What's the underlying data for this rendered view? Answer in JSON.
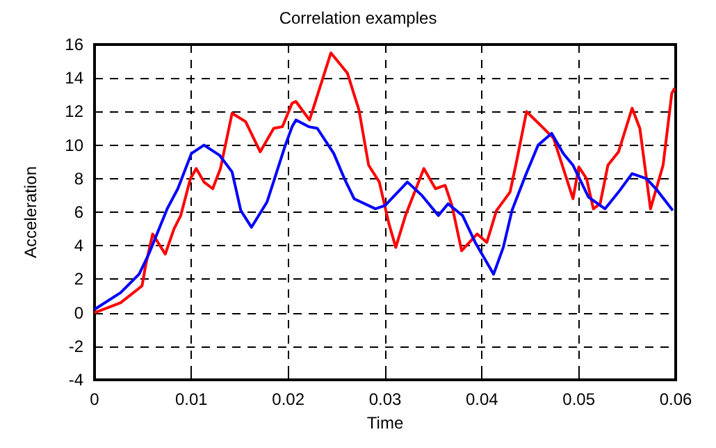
{
  "chart_data": {
    "type": "line",
    "title": "Correlation examples",
    "xlabel": "Time",
    "ylabel": "Acceleration",
    "xlim": [
      0,
      0.06
    ],
    "xticks": [
      0,
      0.01,
      0.02,
      0.03,
      0.04,
      0.05,
      0.06
    ],
    "ylim": [
      -4,
      16
    ],
    "yticks": [
      -4,
      -2,
      0,
      2,
      4,
      6,
      8,
      10,
      12,
      14,
      16
    ],
    "grid": true,
    "marker": "none",
    "line_style": "solid",
    "series": [
      {
        "color": "#ff0000",
        "x": [
          0,
          0.0027,
          0.0049,
          0.0053,
          0.006,
          0.0073,
          0.0082,
          0.0089,
          0.0099,
          0.0105,
          0.0113,
          0.0122,
          0.013,
          0.0142,
          0.0156,
          0.0171,
          0.0185,
          0.0194,
          0.0204,
          0.0208,
          0.0222,
          0.0244,
          0.0261,
          0.0273,
          0.0283,
          0.0294,
          0.0304,
          0.0311,
          0.0321,
          0.034,
          0.0352,
          0.0362,
          0.0369,
          0.0379,
          0.0395,
          0.0405,
          0.0415,
          0.0429,
          0.0436,
          0.0446,
          0.0462,
          0.0474,
          0.0484,
          0.0494,
          0.05,
          0.0508,
          0.0515,
          0.0522,
          0.053,
          0.0541,
          0.0555,
          0.0563,
          0.0574,
          0.0587,
          0.0596,
          0.0599
        ],
        "values": [
          0,
          0.6,
          1.6,
          2.9,
          4.7,
          3.5,
          5.0,
          5.8,
          8.0,
          8.6,
          7.8,
          7.4,
          8.6,
          11.9,
          11.4,
          9.6,
          11.0,
          11.1,
          12.5,
          12.6,
          11.5,
          15.5,
          14.3,
          12.1,
          8.8,
          7.8,
          5.3,
          3.9,
          5.8,
          8.6,
          7.4,
          7.6,
          6.4,
          3.7,
          4.7,
          4.2,
          6.1,
          7.2,
          9.1,
          12.0,
          11.1,
          10.4,
          8.6,
          6.8,
          8.7,
          8.0,
          6.2,
          6.5,
          8.8,
          9.6,
          12.2,
          11.0,
          6.2,
          8.8,
          13.1,
          13.4
        ]
      },
      {
        "color": "#0000ff",
        "x": [
          0,
          0.0027,
          0.0046,
          0.0056,
          0.0075,
          0.0086,
          0.01,
          0.0113,
          0.0129,
          0.0142,
          0.0151,
          0.0162,
          0.0178,
          0.0187,
          0.0197,
          0.0204,
          0.0208,
          0.0221,
          0.023,
          0.0247,
          0.0258,
          0.0268,
          0.029,
          0.03,
          0.0323,
          0.0338,
          0.0355,
          0.0365,
          0.038,
          0.0393,
          0.0405,
          0.0412,
          0.0422,
          0.0431,
          0.0445,
          0.0458,
          0.0472,
          0.0484,
          0.0494,
          0.051,
          0.0527,
          0.0541,
          0.0555,
          0.057,
          0.0581,
          0.0597
        ],
        "values": [
          0.2,
          1.2,
          2.3,
          3.5,
          6.2,
          7.4,
          9.5,
          10.0,
          9.4,
          8.4,
          6.1,
          5.1,
          6.6,
          8.2,
          10.0,
          11.1,
          11.5,
          11.1,
          11.0,
          9.5,
          8.0,
          6.8,
          6.2,
          6.4,
          7.8,
          7.0,
          5.8,
          6.5,
          5.8,
          4.2,
          3.0,
          2.3,
          3.9,
          6.1,
          8.2,
          10.0,
          10.7,
          9.5,
          8.8,
          6.9,
          6.2,
          7.2,
          8.3,
          8.0,
          7.3,
          6.1
        ]
      }
    ]
  }
}
